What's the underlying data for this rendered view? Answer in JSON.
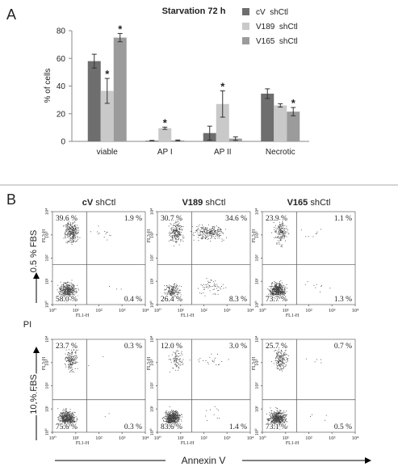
{
  "panel_a_label": "A",
  "chart_data": {
    "type": "bar",
    "title": "Starvation 72 h",
    "y_label": "% of cells",
    "categories": [
      "viable",
      "AP I",
      "AP II",
      "Necrotic"
    ],
    "series": [
      {
        "name": "cV  shCtl",
        "color": "#6e6e6e",
        "values": [
          58,
          0.5,
          6,
          34.5
        ],
        "errors": [
          5,
          0.2,
          5,
          3.5
        ],
        "markers": [
          null,
          null,
          null,
          null
        ]
      },
      {
        "name": "V189  shCtl",
        "color": "#c9c9c9",
        "values": [
          36.5,
          9.5,
          27,
          26
        ],
        "errors": [
          9,
          0.8,
          9.5,
          1.2
        ],
        "markers": [
          "*",
          "*",
          "*",
          null
        ]
      },
      {
        "name": "V165  shCtl",
        "color": "#9b9b9b",
        "values": [
          75,
          0.7,
          2,
          21.5
        ],
        "errors": [
          3,
          0.3,
          1.3,
          3
        ],
        "markers": [
          "*",
          null,
          null,
          "*"
        ]
      }
    ],
    "ylim": [
      0,
      80
    ],
    "yticks": [
      0,
      20,
      40,
      60,
      80
    ],
    "grid": false,
    "legend": "upper right"
  },
  "flow_panel": {
    "label": "B",
    "columns": [
      {
        "name": "cV",
        "suffix": " shCtl"
      },
      {
        "name": "V189",
        "suffix": " shCtl"
      },
      {
        "name": "V165",
        "suffix": " shCtl"
      }
    ],
    "rows": [
      {
        "label": "0.5 % FBS",
        "plots": [
          {
            "upper_left": "39.6 %",
            "upper_right": "1.9 %",
            "lower_left": "58.0 %",
            "lower_right": "0.4 %"
          },
          {
            "upper_left": "30.7 %",
            "upper_right": "34.6 %",
            "lower_left": "26.4 %",
            "lower_right": "8.3 %"
          },
          {
            "upper_left": "23.9 %",
            "upper_right": "1.1 %",
            "lower_left": "73.7 %",
            "lower_right": "1.3 %"
          }
        ]
      },
      {
        "label": "10 % FBS",
        "plots": [
          {
            "upper_left": "23.7 %",
            "upper_right": "0.3 %",
            "lower_left": "75.6 %",
            "lower_right": "0.3 %"
          },
          {
            "upper_left": "12.0 %",
            "upper_right": "3.0 %",
            "lower_left": "83.6 %",
            "lower_right": "1.4 %"
          },
          {
            "upper_left": "25.7 %",
            "upper_right": "0.7 %",
            "lower_left": "73.1 %",
            "lower_right": "0.5 %"
          }
        ]
      }
    ],
    "x_axis": "FL1-H",
    "y_axis": "FL3-H",
    "ticks": [
      {
        "value": 1,
        "label": "10⁰"
      },
      {
        "value": 10,
        "label": "10¹"
      },
      {
        "value": 100,
        "label": "10²"
      },
      {
        "value": 1000,
        "label": "10³"
      },
      {
        "value": 10000,
        "label": "10⁴"
      }
    ],
    "lim": [
      1,
      10000
    ],
    "log": true,
    "y_title": "PI",
    "x_title": "Annexin V"
  }
}
